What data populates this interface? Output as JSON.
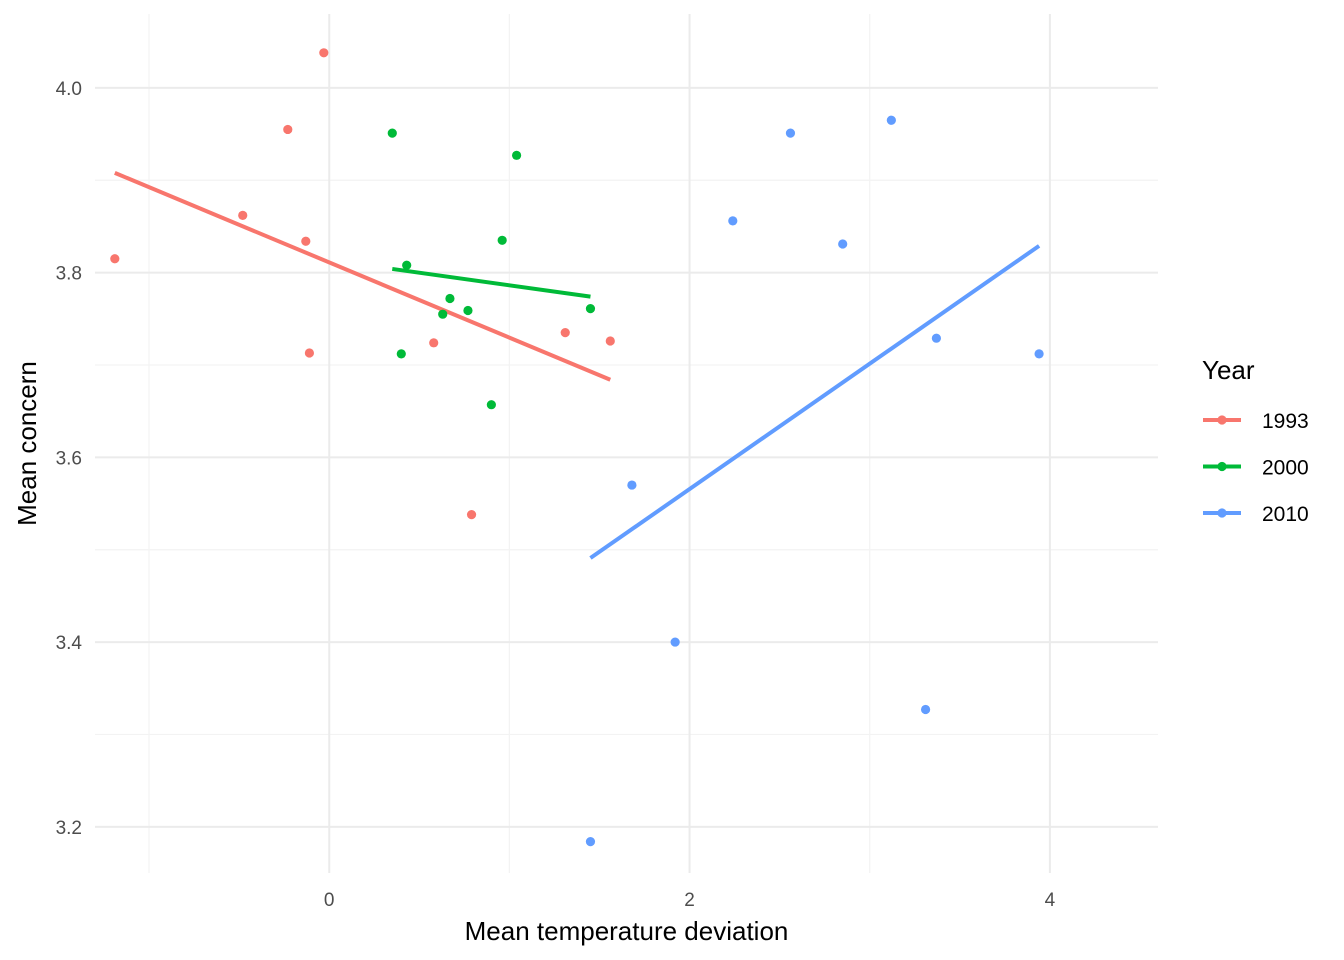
{
  "chart_data": {
    "type": "scatter",
    "xlabel": "Mean temperature deviation",
    "ylabel": "Mean concern",
    "xlim": [
      -1.3,
      4.6
    ],
    "ylim": [
      3.15,
      4.08
    ],
    "x_ticks": [
      0,
      2,
      4
    ],
    "x_tick_labels": [
      "0",
      "2",
      "4"
    ],
    "y_ticks": [
      3.2,
      3.4,
      3.6,
      3.8,
      4.0
    ],
    "y_tick_labels": [
      "3.2",
      "3.4",
      "3.6",
      "3.8",
      "4.0"
    ],
    "grid": true,
    "legend": {
      "title": "Year",
      "placement": "right"
    },
    "series": [
      {
        "name": "1993",
        "color": "#F8766D",
        "points": [
          [
            -1.19,
            3.815
          ],
          [
            -0.48,
            3.862
          ],
          [
            -0.23,
            3.955
          ],
          [
            -0.13,
            3.834
          ],
          [
            -0.11,
            3.713
          ],
          [
            -0.03,
            4.038
          ],
          [
            0.58,
            3.724
          ],
          [
            0.79,
            3.538
          ],
          [
            1.31,
            3.735
          ],
          [
            1.56,
            3.726
          ]
        ],
        "fit": [
          [
            -1.19,
            3.908
          ],
          [
            1.56,
            3.684
          ]
        ]
      },
      {
        "name": "2000",
        "color": "#00BA38",
        "points": [
          [
            0.35,
            3.951
          ],
          [
            0.4,
            3.712
          ],
          [
            0.43,
            3.808
          ],
          [
            0.63,
            3.755
          ],
          [
            0.67,
            3.772
          ],
          [
            0.77,
            3.759
          ],
          [
            0.9,
            3.657
          ],
          [
            0.96,
            3.835
          ],
          [
            1.04,
            3.927
          ],
          [
            1.45,
            3.761
          ]
        ],
        "fit": [
          [
            0.35,
            3.804
          ],
          [
            1.45,
            3.774
          ]
        ]
      },
      {
        "name": "2010",
        "color": "#619CFF",
        "points": [
          [
            1.45,
            3.184
          ],
          [
            1.68,
            3.57
          ],
          [
            1.92,
            3.4
          ],
          [
            2.24,
            3.856
          ],
          [
            2.56,
            3.951
          ],
          [
            2.85,
            3.831
          ],
          [
            3.12,
            3.965
          ],
          [
            3.31,
            3.327
          ],
          [
            3.37,
            3.729
          ],
          [
            3.94,
            3.712
          ]
        ],
        "fit": [
          [
            1.45,
            3.491
          ],
          [
            3.94,
            3.829
          ]
        ]
      }
    ]
  }
}
